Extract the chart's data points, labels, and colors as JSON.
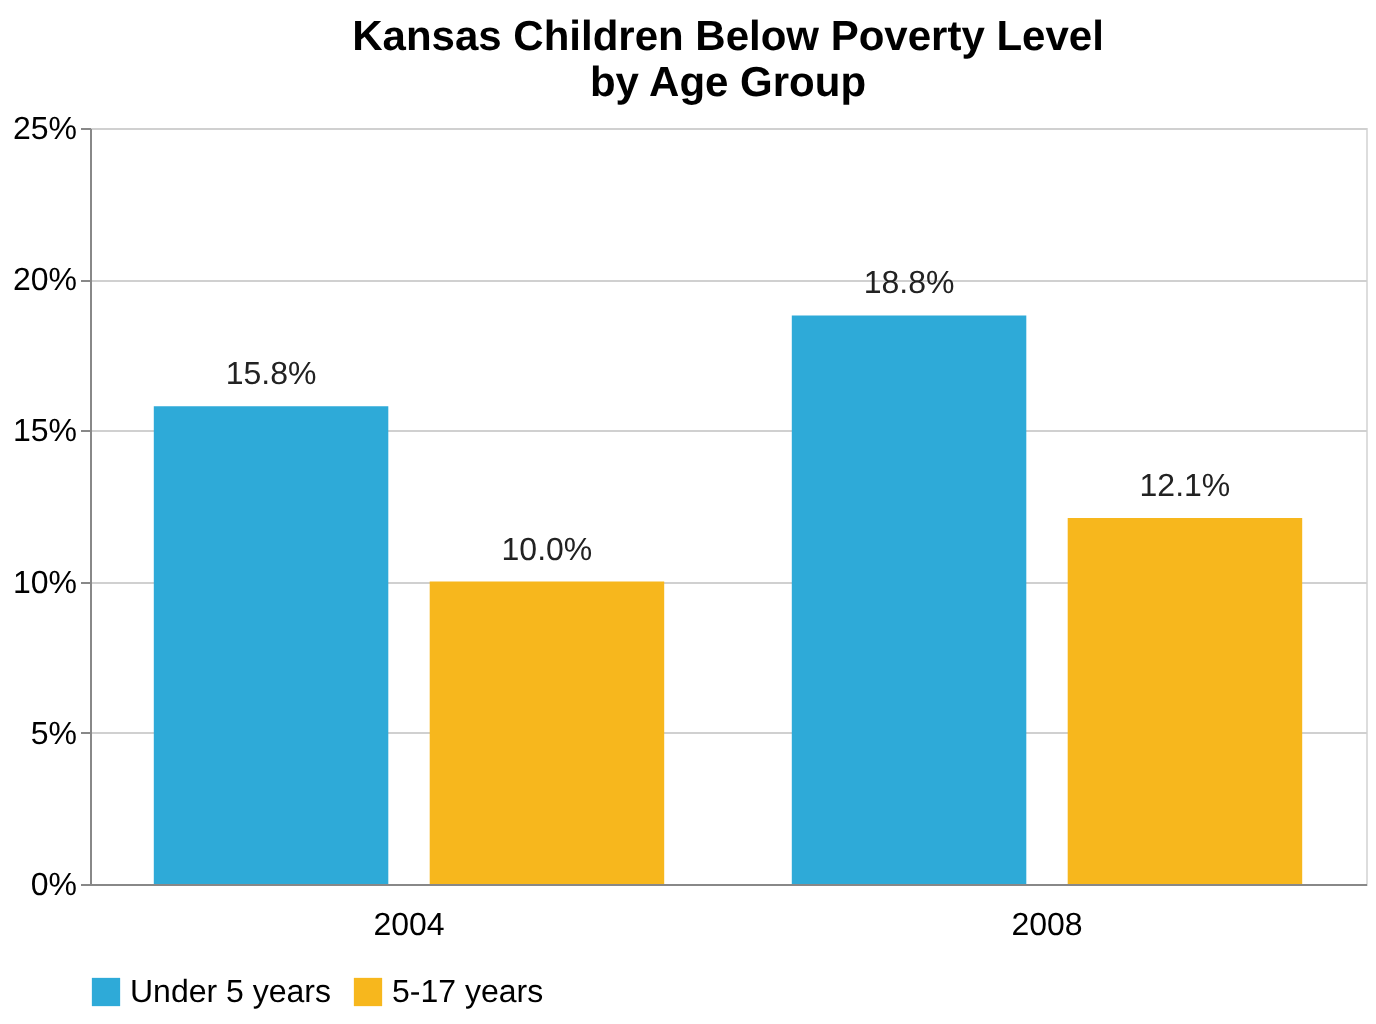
{
  "chart_data": {
    "type": "bar",
    "title": "Kansas Children Below Poverty Level\nby Age Group",
    "categories": [
      "2004",
      "2008"
    ],
    "series": [
      {
        "name": "Under 5 years",
        "color": "#2eaad8",
        "values": [
          15.8,
          18.8
        ],
        "value_labels": [
          "15.8%",
          "18.8%"
        ]
      },
      {
        "name": "5-17 years",
        "color": "#f7b71d",
        "values": [
          10.0,
          12.1
        ],
        "value_labels": [
          "10.0%",
          "12.1%"
        ]
      }
    ],
    "ylim": [
      0,
      25
    ],
    "yticks": [
      {
        "value": 0,
        "label": "0%"
      },
      {
        "value": 5,
        "label": "5%"
      },
      {
        "value": 10,
        "label": "10%"
      },
      {
        "value": 15,
        "label": "15%"
      },
      {
        "value": 20,
        "label": "20%"
      },
      {
        "value": 25,
        "label": "25%"
      }
    ],
    "grid": "y",
    "legend": "bottom"
  }
}
